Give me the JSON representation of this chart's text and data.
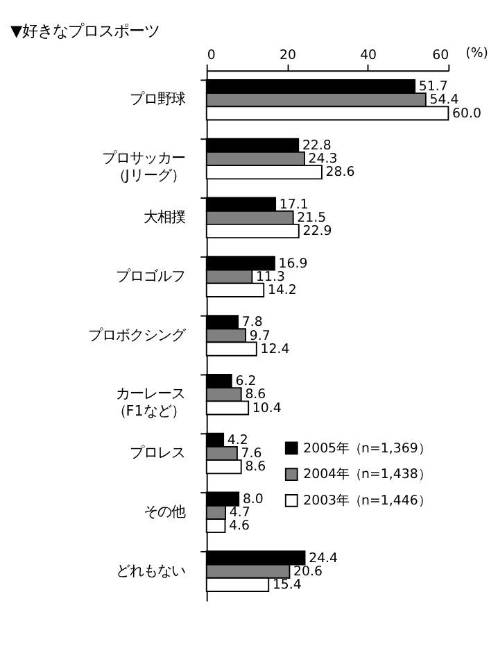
{
  "chart_data": {
    "type": "bar",
    "orientation": "horizontal",
    "title": "▼好きなプロスポーツ",
    "xlabel": "(%)",
    "categories": [
      "プロ野球",
      "プロサッカー（Jリーグ）",
      "大相撲",
      "プロゴルフ",
      "プロボクシング",
      "カーレース（F1など）",
      "プロレス",
      "その他",
      "どれもない"
    ],
    "series": [
      {
        "name": "2005年（n=1,369）",
        "color": "#000000",
        "values": [
          51.7,
          22.8,
          17.1,
          16.9,
          7.8,
          6.2,
          4.2,
          8.0,
          24.4
        ],
        "value_labels": [
          "51.7",
          "22.8",
          "17.1",
          "16.9",
          "7.8",
          "6.2",
          "4.2",
          "8.0",
          "24.4"
        ]
      },
      {
        "name": "2004年（n=1,438）",
        "color": "#808080",
        "values": [
          54.4,
          24.3,
          21.5,
          11.3,
          9.7,
          8.6,
          7.6,
          4.7,
          20.6
        ],
        "value_labels": [
          "54.4",
          "24.3",
          "21.5",
          "11.3",
          "9.7",
          "8.6",
          "7.6",
          "4.7",
          "20.6"
        ]
      },
      {
        "name": "2003年（n=1,446）",
        "color": "#ffffff",
        "values": [
          60.0,
          28.6,
          22.9,
          14.2,
          12.4,
          10.4,
          8.6,
          4.6,
          15.4
        ],
        "value_labels": [
          "60.0",
          "28.6",
          "22.9",
          "14.2",
          "12.4",
          "10.4",
          "8.6",
          "4.6",
          "15.4"
        ]
      }
    ],
    "xlim": [
      0,
      60
    ],
    "xticks": [
      0,
      20,
      40,
      60
    ],
    "grid": false,
    "legend": "right"
  }
}
